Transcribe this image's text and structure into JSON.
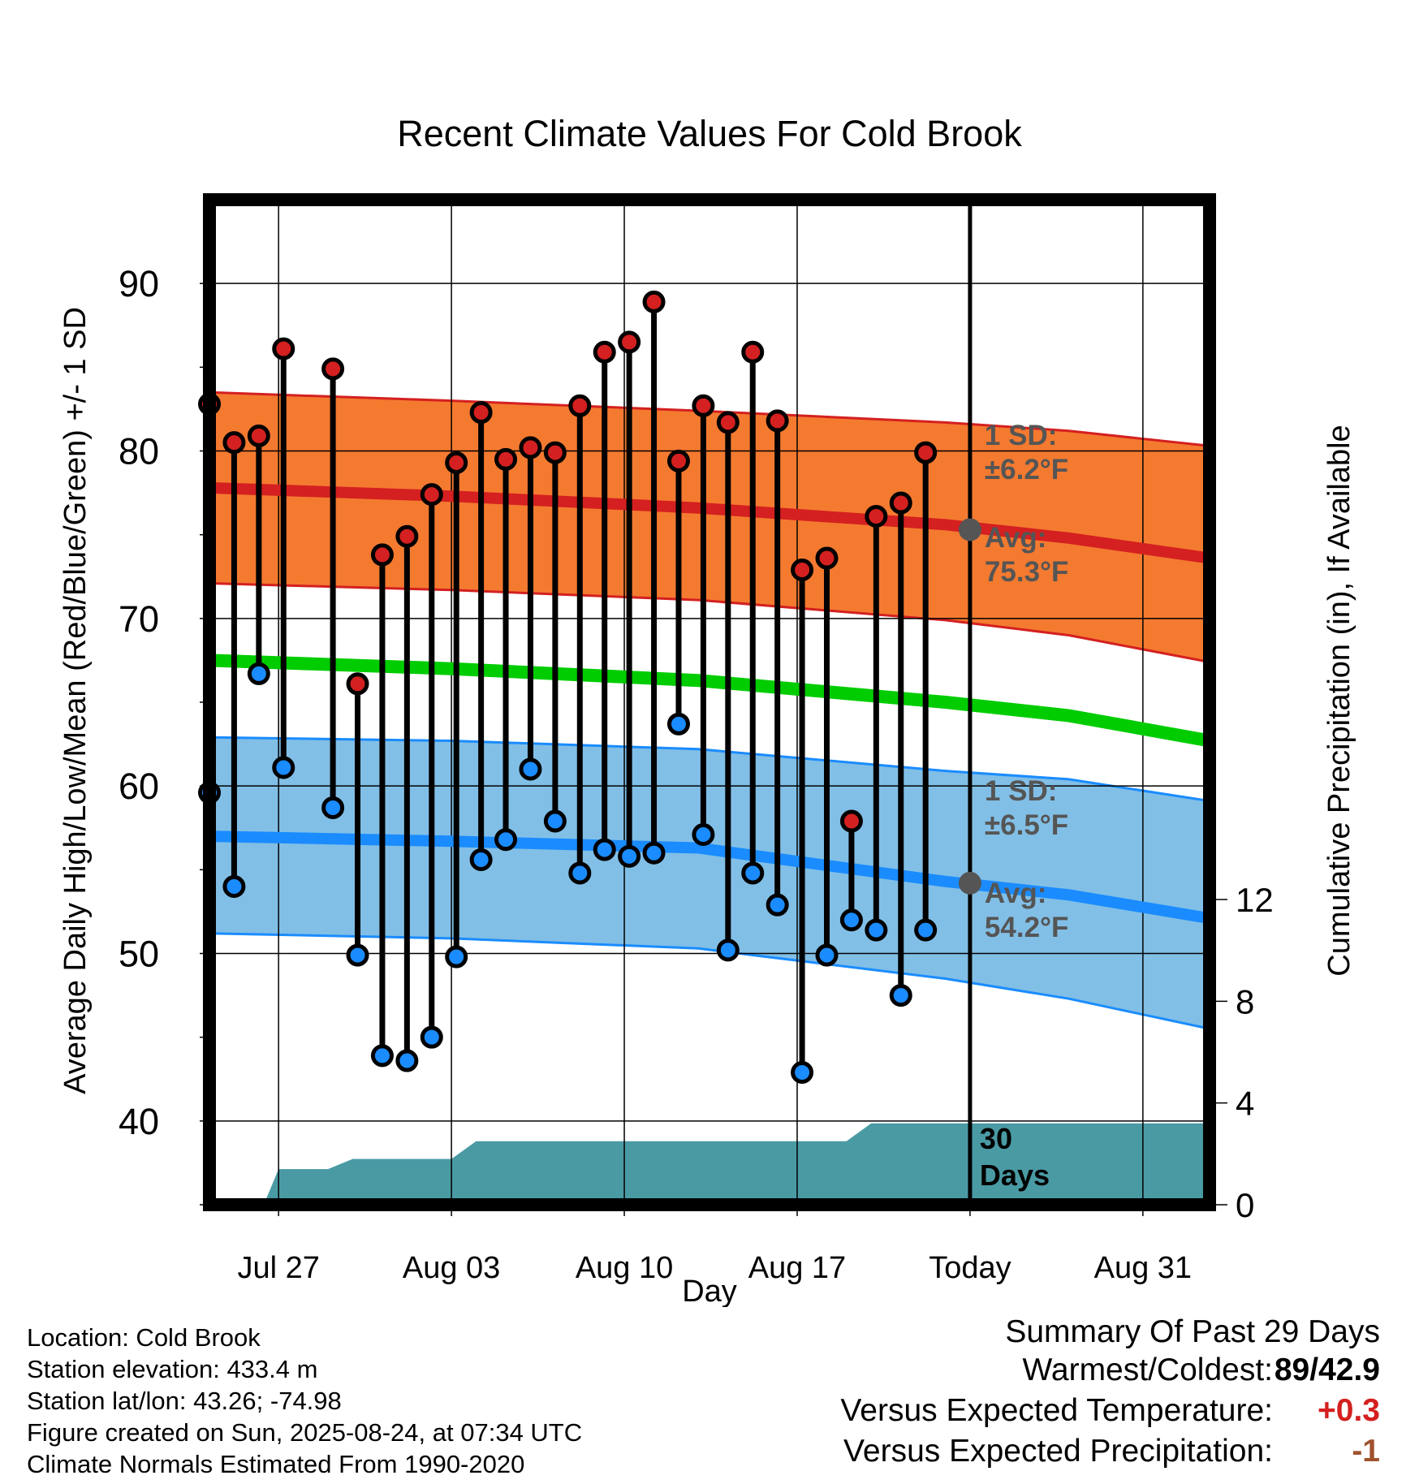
{
  "chart_data": {
    "type": "line",
    "title": "Recent Climate Values For Cold Brook",
    "xlabel": "Day",
    "ylabel_left": "Average Daily High/Low/Mean (Red/Blue/Green) +/- 1 SD",
    "ylabel_right": "Cumulative Precipitation (in), If Available",
    "x_tick_labels": [
      "Jul 27",
      "Aug 03",
      "Aug 10",
      "Aug 17",
      "Today",
      "Aug 31"
    ],
    "x_tick_days": [
      2,
      9,
      16,
      23,
      30,
      37
    ],
    "xlim_days": [
      -0.8,
      39.7
    ],
    "today_day": 30,
    "ylim": [
      35,
      95
    ],
    "y_ticks": [
      40,
      50,
      60,
      70,
      80,
      90
    ],
    "y2lim": [
      0,
      12
    ],
    "y2_ticks": [
      0,
      4,
      8,
      12
    ],
    "grid": true,
    "daily_observations": {
      "day": [
        -0.8,
        0.2,
        1.2,
        2.2,
        4.2,
        5.2,
        6.2,
        7.2,
        8.2,
        9.2,
        10.2,
        11.2,
        12.2,
        13.2,
        14.2,
        15.2,
        16.2,
        17.2,
        18.2,
        19.2,
        20.2,
        21.2,
        22.2,
        23.2,
        24.2,
        25.2,
        26.2,
        27.2,
        28.2
      ],
      "high": [
        82.8,
        80.5,
        80.9,
        86.1,
        84.9,
        66.1,
        73.8,
        74.9,
        77.4,
        79.3,
        82.3,
        79.5,
        80.2,
        79.9,
        82.7,
        85.9,
        86.5,
        88.9,
        79.4,
        82.7,
        81.7,
        85.9,
        81.8,
        72.9,
        73.6,
        57.9,
        76.1,
        76.9,
        79.9
      ],
      "low": [
        59.6,
        54.0,
        66.7,
        61.1,
        58.7,
        49.9,
        43.9,
        43.6,
        45.0,
        49.8,
        55.6,
        56.8,
        61.0,
        57.9,
        54.8,
        56.2,
        55.8,
        56.0,
        63.7,
        57.1,
        50.2,
        54.8,
        52.9,
        42.9,
        49.9,
        52.0,
        51.4,
        47.5,
        51.4
      ]
    },
    "normals": {
      "day": [
        -0.8,
        9,
        19,
        29,
        34,
        39.7
      ],
      "avg_high": [
        77.8,
        77.3,
        76.6,
        75.6,
        74.8,
        73.6
      ],
      "high_upper": [
        83.5,
        83.0,
        82.4,
        81.7,
        81.2,
        80.3
      ],
      "high_lower": [
        72.1,
        71.7,
        71.1,
        69.9,
        69.0,
        67.4
      ],
      "avg_mean": [
        67.5,
        67.0,
        66.3,
        65.0,
        64.2,
        62.7
      ],
      "avg_low": [
        57.0,
        56.7,
        56.3,
        54.3,
        53.5,
        52.1
      ],
      "low_upper": [
        62.9,
        62.7,
        62.2,
        60.9,
        60.4,
        59.1
      ],
      "low_lower": [
        51.2,
        50.9,
        50.3,
        48.5,
        47.3,
        45.5
      ]
    },
    "cumulative_precipitation": {
      "day": [
        1.4,
        2.0,
        4.0,
        5.0,
        9.0,
        10.0,
        16.0,
        22.0,
        25.0,
        26.0,
        39.7
      ],
      "inches": [
        0,
        1.4,
        1.4,
        1.8,
        1.8,
        2.5,
        2.5,
        2.5,
        2.5,
        3.2,
        3.2
      ]
    },
    "annotations": {
      "high_sd_label": "1 SD:",
      "high_sd_value": "±6.2°F",
      "high_avg_label": "Avg:",
      "high_avg_value": "75.3°F",
      "low_sd_label": "1 SD:",
      "low_sd_value": "±6.5°F",
      "low_avg_label": "Avg:",
      "low_avg_value": "54.2°F",
      "today_avg_high": 75.3,
      "today_avg_low": 54.2,
      "days_number": "30",
      "days_word": "Days"
    },
    "colors": {
      "high_band": "#f47a30",
      "high_band_edge": "#d42020",
      "high_avg": "#d42020",
      "mean": "#00cc00",
      "low_band": "#82bfe6",
      "low_band_edge": "#1a8cff",
      "low_avg": "#1a8cff",
      "high_marker": "#d42020",
      "low_marker": "#1a8cff",
      "precip": "#4a9aa4",
      "annotation": "#555555"
    }
  },
  "info": {
    "location": "Location: Cold Brook",
    "elevation": "Station elevation: 433.4 m",
    "latlon": "Station lat/lon: 43.26; -74.98",
    "created": "Figure created on Sun, 2025-08-24, at 07:34 UTC",
    "normals": "Climate Normals Estimated From 1990-2020"
  },
  "summary": {
    "title": "Summary Of Past 29 Days",
    "warmest_label": "Warmest/Coldest:",
    "warmest_value": "89",
    "coldest_value": "42.9",
    "temp_label": "Versus Expected Temperature:",
    "temp_value": "+0.3",
    "temp_color": "#d42020",
    "precip_label": "Versus Expected Precipitation:",
    "precip_value": "-1",
    "precip_color": "#a0522d"
  }
}
